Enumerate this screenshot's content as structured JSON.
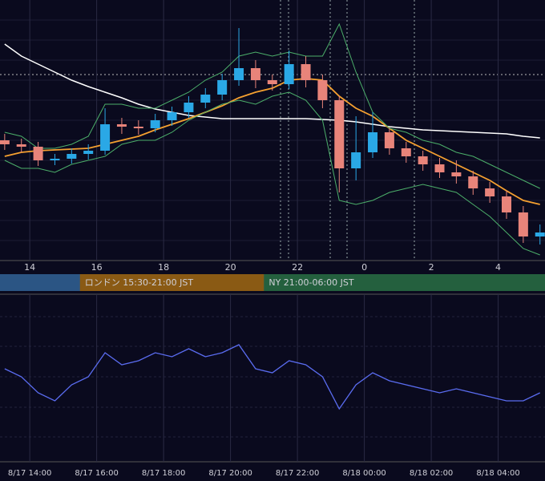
{
  "chart_data": [
    {
      "type": "candlestick",
      "xlim": [
        13.11,
        29.4
      ],
      "ylim": [
        0,
        325
      ],
      "xticks": [
        14,
        16,
        18,
        20,
        22,
        {
          "value": 24,
          "label": "0"
        },
        {
          "value": 26,
          "label": "2"
        },
        {
          "value": 28,
          "label": "4"
        }
      ],
      "x": [
        13.25,
        13.75,
        14.25,
        14.75,
        15.25,
        15.75,
        16.25,
        16.75,
        17.25,
        17.75,
        18.25,
        18.75,
        19.25,
        19.75,
        20.25,
        20.75,
        21.25,
        21.75,
        22.25,
        22.75,
        23.25,
        23.75,
        24.25,
        24.75,
        25.25,
        25.75,
        26.25,
        26.75,
        27.25,
        27.75,
        28.25,
        28.75,
        29.25
      ],
      "open": [
        150,
        145,
        142,
        125,
        127,
        133,
        137,
        170,
        167,
        165,
        175,
        185,
        197,
        207,
        225,
        240,
        225,
        220,
        245,
        225,
        200,
        115,
        135,
        160,
        140,
        130,
        120,
        110,
        105,
        90,
        80,
        60,
        30
      ],
      "close": [
        145,
        142,
        125,
        127,
        133,
        137,
        170,
        167,
        165,
        175,
        185,
        197,
        207,
        225,
        240,
        225,
        220,
        245,
        225,
        200,
        115,
        135,
        160,
        140,
        130,
        120,
        110,
        105,
        90,
        80,
        60,
        30,
        35
      ],
      "high": [
        158,
        152,
        148,
        133,
        140,
        145,
        190,
        178,
        175,
        183,
        192,
        205,
        215,
        233,
        290,
        250,
        232,
        262,
        255,
        232,
        205,
        180,
        185,
        165,
        148,
        137,
        128,
        125,
        112,
        98,
        87,
        68,
        45
      ],
      "low": [
        138,
        135,
        118,
        119,
        121,
        126,
        132,
        158,
        157,
        160,
        168,
        178,
        190,
        200,
        218,
        215,
        212,
        214,
        216,
        190,
        85,
        100,
        128,
        132,
        122,
        112,
        103,
        96,
        82,
        72,
        52,
        22,
        20
      ],
      "up_color": "#2aa8e6",
      "down_color": "#e8847a",
      "lines": [
        {
          "color": "#ffffff",
          "values": [
            270,
            255,
            245,
            235,
            225,
            217,
            210,
            203,
            195,
            189,
            185,
            181,
            179,
            177,
            177,
            177,
            177,
            177,
            177,
            176,
            175,
            173,
            170,
            167,
            165,
            163,
            162,
            161,
            160,
            159,
            158,
            155,
            153
          ]
        },
        {
          "color": "#f5a030",
          "values": [
            130,
            135,
            137,
            138,
            139,
            140,
            145,
            150,
            155,
            163,
            170,
            177,
            185,
            193,
            203,
            210,
            215,
            225,
            227,
            225,
            205,
            190,
            180,
            165,
            150,
            140,
            130,
            120,
            110,
            100,
            87,
            75,
            70
          ]
        },
        {
          "color": "#4caf6a",
          "values": [
            160,
            155,
            140,
            140,
            145,
            155,
            195,
            195,
            190,
            190,
            200,
            210,
            225,
            235,
            255,
            260,
            255,
            260,
            255,
            255,
            295,
            235,
            185,
            165,
            160,
            150,
            145,
            135,
            130,
            120,
            110,
            100,
            90
          ]
        },
        {
          "color": "#4caf6a",
          "values": [
            125,
            115,
            115,
            110,
            120,
            125,
            130,
            145,
            150,
            150,
            160,
            175,
            185,
            195,
            200,
            195,
            205,
            210,
            200,
            175,
            75,
            70,
            75,
            85,
            90,
            95,
            90,
            85,
            70,
            55,
            35,
            15,
            7
          ]
        }
      ],
      "sessions": [
        {
          "name": "ロンドン 15:30-21:00 JST",
          "start": 15.5,
          "end": 21,
          "color": "#8a5a14"
        },
        {
          "name": "NY 21:00-06:00 JST",
          "start": 21,
          "end": 30,
          "color": "#24603e"
        }
      ]
    },
    {
      "type": "line",
      "xlim": [
        13.11,
        29.4
      ],
      "ylim": [
        0,
        100
      ],
      "color": "#5a6cf0",
      "xticks": [
        {
          "value": 14,
          "label": "8/17 14:00"
        },
        {
          "value": 16,
          "label": "8/17 16:00"
        },
        {
          "value": 18,
          "label": "8/17 18:00"
        },
        {
          "value": 20,
          "label": "8/17 20:00"
        },
        {
          "value": 22,
          "label": "8/17 22:00"
        },
        {
          "value": 24,
          "label": "8/18 00:00"
        },
        {
          "value": 26,
          "label": "8/18 02:00"
        },
        {
          "value": 28,
          "label": "8/18 04:00"
        }
      ],
      "x": [
        13.25,
        13.75,
        14.25,
        14.75,
        15.25,
        15.75,
        16.25,
        16.75,
        17.25,
        17.75,
        18.25,
        18.75,
        19.25,
        19.75,
        20.25,
        20.75,
        21.25,
        21.75,
        22.25,
        22.75,
        23.25,
        23.75,
        24.25,
        24.75,
        25.25,
        25.75,
        26.25,
        26.75,
        27.25,
        27.75,
        28.25,
        28.75,
        29.25
      ],
      "values": [
        55,
        50,
        40,
        35,
        45,
        50,
        65,
        57.5,
        60,
        65,
        62.5,
        67.5,
        62.5,
        65,
        70,
        55,
        52.5,
        60,
        57.5,
        50,
        30,
        45,
        52.5,
        47.5,
        45,
        42.5,
        40,
        42.5,
        40,
        37.5,
        35,
        35,
        40
      ]
    }
  ]
}
